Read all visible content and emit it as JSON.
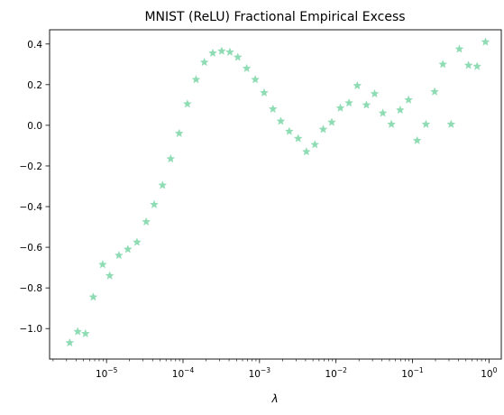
{
  "chart_data": {
    "type": "scatter",
    "title": "MNIST (ReLU) Fractional Empirical Excess",
    "xlabel": "λ",
    "ylabel": "",
    "xscale": "log",
    "xlim": [
      1.8e-06,
      1.45
    ],
    "ylim": [
      -1.15,
      0.47
    ],
    "x_ticks": [
      1e-05,
      0.0001,
      0.001,
      0.01,
      0.1,
      1
    ],
    "x_tick_labels": [
      {
        "base": "10",
        "exp": "−5"
      },
      {
        "base": "10",
        "exp": "−4"
      },
      {
        "base": "10",
        "exp": "−3"
      },
      {
        "base": "10",
        "exp": "−2"
      },
      {
        "base": "10",
        "exp": "−1"
      },
      {
        "base": "10",
        "exp": "0"
      }
    ],
    "y_ticks": [
      -1.0,
      -0.8,
      -0.6,
      -0.4,
      -0.2,
      0.0,
      0.2,
      0.4
    ],
    "y_tick_labels": [
      "−1.0",
      "−0.8",
      "−0.6",
      "−0.4",
      "−0.2",
      "0.0",
      "0.2",
      "0.4"
    ],
    "grid": false,
    "marker": "star",
    "marker_color": "#8fdcb4",
    "series": [
      {
        "points": [
          [
            3.3e-06,
            -1.07
          ],
          [
            4.2e-06,
            -1.015
          ],
          [
            5.3e-06,
            -1.025
          ],
          [
            6.7e-06,
            -0.845
          ],
          [
            8.9e-06,
            -0.685
          ],
          [
            1.1e-05,
            -0.74
          ],
          [
            1.45e-05,
            -0.64
          ],
          [
            1.9e-05,
            -0.61
          ],
          [
            2.5e-05,
            -0.575
          ],
          [
            3.3e-05,
            -0.475
          ],
          [
            4.2e-05,
            -0.39
          ],
          [
            5.4e-05,
            -0.295
          ],
          [
            6.9e-05,
            -0.165
          ],
          [
            8.9e-05,
            -0.04
          ],
          [
            0.000114,
            0.105
          ],
          [
            0.000148,
            0.225
          ],
          [
            0.00019,
            0.31
          ],
          [
            0.000245,
            0.355
          ],
          [
            0.00032,
            0.365
          ],
          [
            0.00041,
            0.36
          ],
          [
            0.00052,
            0.335
          ],
          [
            0.00068,
            0.28
          ],
          [
            0.00088,
            0.225
          ],
          [
            0.00115,
            0.16
          ],
          [
            0.0015,
            0.08
          ],
          [
            0.0019,
            0.02
          ],
          [
            0.00245,
            -0.03
          ],
          [
            0.0032,
            -0.065
          ],
          [
            0.0041,
            -0.13
          ],
          [
            0.0053,
            -0.095
          ],
          [
            0.0068,
            -0.02
          ],
          [
            0.0088,
            0.015
          ],
          [
            0.0114,
            0.085
          ],
          [
            0.0148,
            0.11
          ],
          [
            0.019,
            0.195
          ],
          [
            0.025,
            0.1
          ],
          [
            0.032,
            0.155
          ],
          [
            0.041,
            0.06
          ],
          [
            0.053,
            0.005
          ],
          [
            0.069,
            0.075
          ],
          [
            0.089,
            0.125
          ],
          [
            0.115,
            -0.075
          ],
          [
            0.15,
            0.005
          ],
          [
            0.195,
            0.165
          ],
          [
            0.25,
            0.3
          ],
          [
            0.32,
            0.005
          ],
          [
            0.41,
            0.375
          ],
          [
            0.54,
            0.295
          ],
          [
            0.7,
            0.29
          ],
          [
            0.9,
            0.41
          ]
        ]
      }
    ]
  }
}
